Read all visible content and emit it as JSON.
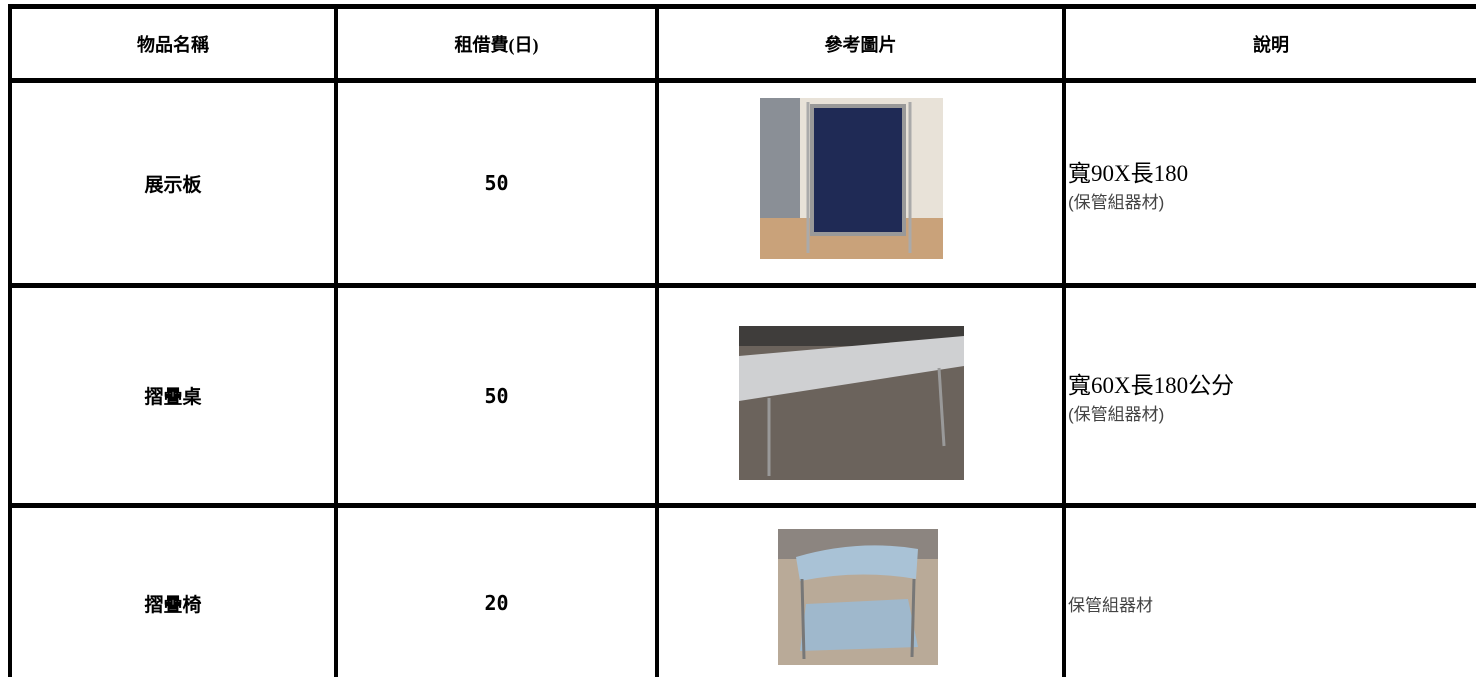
{
  "table": {
    "header": [
      "物品名稱",
      "租借費(日)",
      "參考圖片",
      "說明"
    ],
    "rows": [
      {
        "name": "展示板",
        "fee": 50,
        "description": [
          "寬90X長180",
          "(保管組器材)"
        ]
      },
      {
        "name": "摺疊桌",
        "fee": 50,
        "description": [
          "寬60X長180公分",
          "(保管組器材)"
        ]
      },
      {
        "name": "摺疊椅",
        "fee": 20,
        "description": [
          "保管組器材"
        ]
      }
    ]
  }
}
